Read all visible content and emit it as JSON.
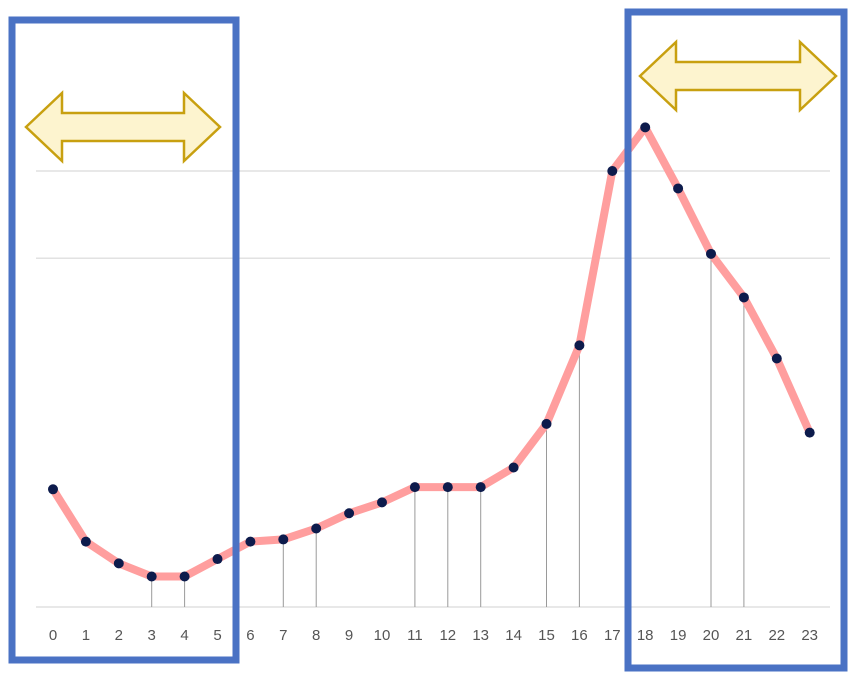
{
  "chart_data": {
    "type": "line",
    "x": [
      0,
      1,
      2,
      3,
      4,
      5,
      6,
      7,
      8,
      9,
      10,
      11,
      12,
      13,
      14,
      15,
      16,
      17,
      18,
      19,
      20,
      21,
      22,
      23
    ],
    "values": [
      27,
      15,
      10,
      7,
      7,
      11,
      15,
      15.5,
      18,
      21.5,
      24,
      27.5,
      27.5,
      27.5,
      32,
      42,
      60,
      100,
      110,
      96,
      81,
      71,
      57,
      40
    ],
    "title": "",
    "xlabel": "",
    "ylabel": "",
    "xlim": [
      0,
      23
    ],
    "ylim": [
      0,
      100
    ],
    "gridlines_y": [
      0,
      80,
      100
    ],
    "drop_lines_at": [
      3,
      4,
      7,
      8,
      11,
      12,
      13,
      15,
      16,
      20,
      21
    ],
    "grid": true,
    "legend": "none",
    "line_color": "#ff9e9e",
    "marker_color": "#0d1b4c",
    "highlights": [
      {
        "from": 0,
        "to": 5,
        "border_color": "#4a72c4",
        "arrow_fill": "#fdf4cf",
        "arrow_stroke": "#c8a010"
      },
      {
        "from": 18,
        "to": 23,
        "border_color": "#4a72c4",
        "arrow_fill": "#fdf4cf",
        "arrow_stroke": "#c8a010"
      }
    ]
  }
}
